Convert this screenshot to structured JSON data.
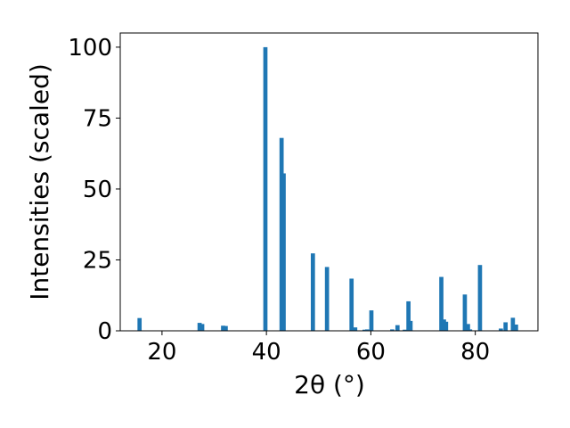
{
  "chart_data": {
    "type": "bar",
    "title": "",
    "xlabel": "2θ (°)",
    "ylabel": "Intensities (scaled)",
    "xlim": [
      12,
      92
    ],
    "ylim": [
      0,
      105
    ],
    "xticks": [
      20,
      40,
      60,
      80
    ],
    "yticks": [
      0,
      25,
      50,
      75,
      100
    ],
    "bar_width": 0.8,
    "bar_color": "#1f77b4",
    "grid": false,
    "legend": "none",
    "x": [
      15.7,
      27.2,
      27.7,
      31.7,
      32.2,
      39.8,
      42.9,
      43.3,
      48.9,
      51.6,
      56.3,
      57.0,
      58.8,
      59.3,
      60.1,
      64.1,
      65.1,
      66.5,
      67.2,
      67.6,
      73.5,
      74.0,
      74.4,
      78.0,
      78.6,
      79.0,
      80.9,
      84.9,
      85.8,
      87.2,
      87.8
    ],
    "values": [
      4.5,
      2.8,
      2.4,
      1.8,
      1.7,
      100.0,
      68.0,
      55.5,
      27.3,
      22.5,
      18.4,
      1.2,
      0.4,
      0.5,
      7.2,
      0.5,
      2.0,
      0.4,
      10.4,
      3.5,
      19.0,
      4.0,
      3.2,
      12.8,
      2.4,
      0.5,
      23.2,
      0.8,
      3.0,
      4.6,
      2.2
    ]
  }
}
